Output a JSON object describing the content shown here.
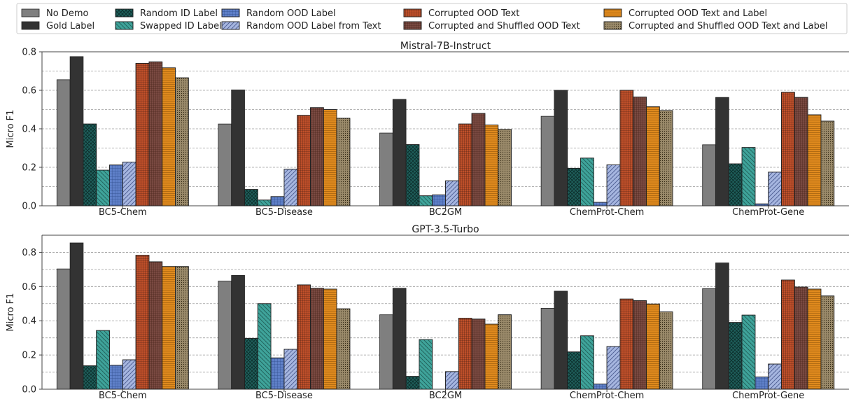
{
  "chart_data": {
    "type": "bar",
    "legend": {
      "placement": "top",
      "entries": [
        {
          "name": "No Demo",
          "color": "#7f7f7f",
          "pattern": "none"
        },
        {
          "name": "Gold Label",
          "color": "#333333",
          "pattern": "none"
        },
        {
          "name": "Random ID Label",
          "color": "#1f5f5b",
          "pattern": "cross"
        },
        {
          "name": "Swapped ID Label",
          "color": "#3fa39a",
          "pattern": "diag-back"
        },
        {
          "name": "Random OOD Label",
          "color": "#5f80c8",
          "pattern": "grid"
        },
        {
          "name": "Random OOD Label from Text",
          "color": "#a6b6e0",
          "pattern": "diag"
        },
        {
          "name": "Corrupted OOD Text",
          "color": "#c0502a",
          "pattern": "dense-grid"
        },
        {
          "name": "Corrupted and Shuffled OOD Text",
          "color": "#7a4a42",
          "pattern": "dense-grid"
        },
        {
          "name": "Corrupted OOD Text and Label",
          "color": "#e08a1e",
          "pattern": "hlines"
        },
        {
          "name": "Corrupted and Shuffled OOD Text and Label",
          "color": "#9a8a6a",
          "pattern": "dots"
        }
      ]
    },
    "panels": [
      {
        "title": "Mistral-7B-Instruct",
        "ylabel": "Micro F1",
        "ylim": [
          0,
          0.8
        ],
        "yticks": [
          "0.0",
          "0.2",
          "0.4",
          "0.6",
          "0.8"
        ],
        "tickValues": [
          0,
          0.2,
          0.4,
          0.6,
          0.8
        ],
        "grid": true,
        "categories": [
          "BC5-Chem",
          "BC5-Disease",
          "BC2GM",
          "ChemProt-Chem",
          "ChemProt-Gene"
        ],
        "series": [
          {
            "name": "No Demo",
            "values": [
              0.655,
              0.425,
              0.378,
              0.465,
              0.317
            ]
          },
          {
            "name": "Gold Label",
            "values": [
              0.775,
              0.602,
              0.553,
              0.6,
              0.563
            ]
          },
          {
            "name": "Random ID Label",
            "values": [
              0.425,
              0.085,
              0.318,
              0.195,
              0.218
            ]
          },
          {
            "name": "Swapped ID Label",
            "values": [
              0.185,
              0.03,
              0.052,
              0.248,
              0.303
            ]
          },
          {
            "name": "Random OOD Label",
            "values": [
              0.212,
              0.048,
              0.057,
              0.018,
              0.01
            ]
          },
          {
            "name": "Random OOD Label from Text",
            "values": [
              0.227,
              0.19,
              0.13,
              0.213,
              0.175
            ]
          },
          {
            "name": "Corrupted OOD Text",
            "values": [
              0.74,
              0.47,
              0.425,
              0.6,
              0.59
            ]
          },
          {
            "name": "Corrupted and Shuffled OOD Text",
            "values": [
              0.748,
              0.51,
              0.48,
              0.565,
              0.563
            ]
          },
          {
            "name": "Corrupted OOD Text and Label",
            "values": [
              0.717,
              0.5,
              0.42,
              0.515,
              0.473
            ]
          },
          {
            "name": "Corrupted and Shuffled OOD Text and Label",
            "values": [
              0.665,
              0.455,
              0.397,
              0.495,
              0.44
            ]
          }
        ]
      },
      {
        "title": "GPT-3.5-Turbo",
        "ylabel": "Micro F1",
        "ylim": [
          0,
          0.9
        ],
        "yticks": [
          "0.0",
          "0.2",
          "0.4",
          "0.6",
          "0.8"
        ],
        "tickValues": [
          0,
          0.2,
          0.4,
          0.6,
          0.8
        ],
        "grid": true,
        "categories": [
          "BC5-Chem",
          "BC5-Disease",
          "BC2GM",
          "ChemProt-Chem",
          "ChemProt-Gene"
        ],
        "series": [
          {
            "name": "No Demo",
            "values": [
              0.703,
              0.632,
              0.435,
              0.473,
              0.588
            ]
          },
          {
            "name": "Gold Label",
            "values": [
              0.855,
              0.665,
              0.59,
              0.573,
              0.738
            ]
          },
          {
            "name": "Random ID Label",
            "values": [
              0.137,
              0.297,
              0.075,
              0.218,
              0.39
            ]
          },
          {
            "name": "Swapped ID Label",
            "values": [
              0.343,
              0.5,
              0.29,
              0.312,
              0.433
            ]
          },
          {
            "name": "Random OOD Label",
            "values": [
              0.14,
              0.183,
              0.0,
              0.03,
              0.072
            ]
          },
          {
            "name": "Random OOD Label from Text",
            "values": [
              0.172,
              0.233,
              0.103,
              0.25,
              0.147
            ]
          },
          {
            "name": "Corrupted OOD Text",
            "values": [
              0.783,
              0.61,
              0.415,
              0.527,
              0.638
            ]
          },
          {
            "name": "Corrupted and Shuffled OOD Text",
            "values": [
              0.745,
              0.59,
              0.41,
              0.518,
              0.597
            ]
          },
          {
            "name": "Corrupted OOD Text and Label",
            "values": [
              0.717,
              0.585,
              0.38,
              0.498,
              0.585
            ]
          },
          {
            "name": "Corrupted and Shuffled OOD Text and Label",
            "values": [
              0.717,
              0.47,
              0.435,
              0.452,
              0.545
            ]
          }
        ]
      }
    ]
  }
}
